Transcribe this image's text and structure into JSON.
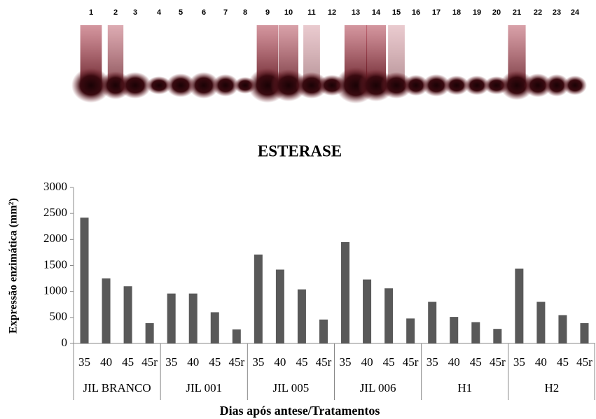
{
  "gel": {
    "lanes": [
      "1",
      "2",
      "3",
      "4",
      "5",
      "6",
      "7",
      "8",
      "9",
      "10",
      "11",
      "12",
      "13",
      "14",
      "15",
      "16",
      "17",
      "18",
      "19",
      "20",
      "21",
      "22",
      "23",
      "24"
    ]
  },
  "chart_data": {
    "type": "bar",
    "title": "ESTERASE",
    "x_label": "Dias após antese/Tratamentos",
    "y_label": "Expressão enzimática (mm²)",
    "categories": [
      "35",
      "40",
      "45",
      "45r",
      "35",
      "40",
      "45",
      "45r",
      "35",
      "40",
      "45",
      "45r",
      "35",
      "40",
      "45",
      "45r",
      "35",
      "40",
      "45",
      "45r",
      "35",
      "40",
      "45",
      "45r"
    ],
    "groups": [
      "JIL BRANCO",
      "JIL 001",
      "JIL 005",
      "JIL 006",
      "H1",
      "H2"
    ],
    "values": [
      2420,
      1250,
      1100,
      390,
      960,
      960,
      600,
      270,
      1710,
      1420,
      1040,
      460,
      1950,
      1230,
      1060,
      480,
      800,
      510,
      410,
      280,
      1440,
      800,
      545,
      390
    ],
    "color": "#595959",
    "ylim": [
      0,
      3000
    ],
    "yticks": [
      0,
      500,
      1000,
      1500,
      2000,
      2500,
      3000
    ]
  }
}
